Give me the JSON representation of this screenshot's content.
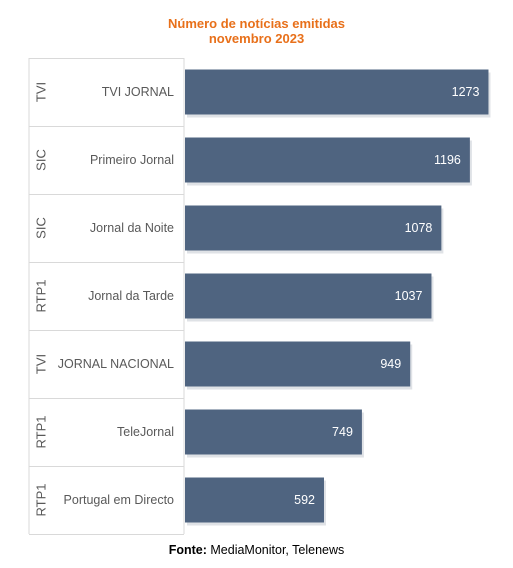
{
  "chart_data": {
    "type": "bar",
    "orientation": "horizontal",
    "title": "Número de notícias emitidas",
    "subtitle": "novembro 2023",
    "groups": [
      "TVI",
      "SIC",
      "SIC",
      "RTP1",
      "TVI",
      "RTP1",
      "RTP1"
    ],
    "categories": [
      "TVI JORNAL",
      "Primeiro Jornal",
      "Jornal da Noite",
      "Jornal da Tarde",
      "JORNAL NACIONAL",
      "TeleJornal",
      "Portugal em Directo"
    ],
    "values": [
      1273,
      1196,
      1078,
      1037,
      949,
      749,
      592
    ],
    "xlim": [
      0,
      1300
    ],
    "grid": false,
    "bar_color": "#4f6480",
    "label_color": "#ffffff"
  },
  "source": {
    "label": "Fonte:",
    "text": "MediaMonitor, Telenews"
  },
  "colors": {
    "title": "#e8701a",
    "grid_lines": "#d9d9d9",
    "axis_text": "#595959"
  }
}
